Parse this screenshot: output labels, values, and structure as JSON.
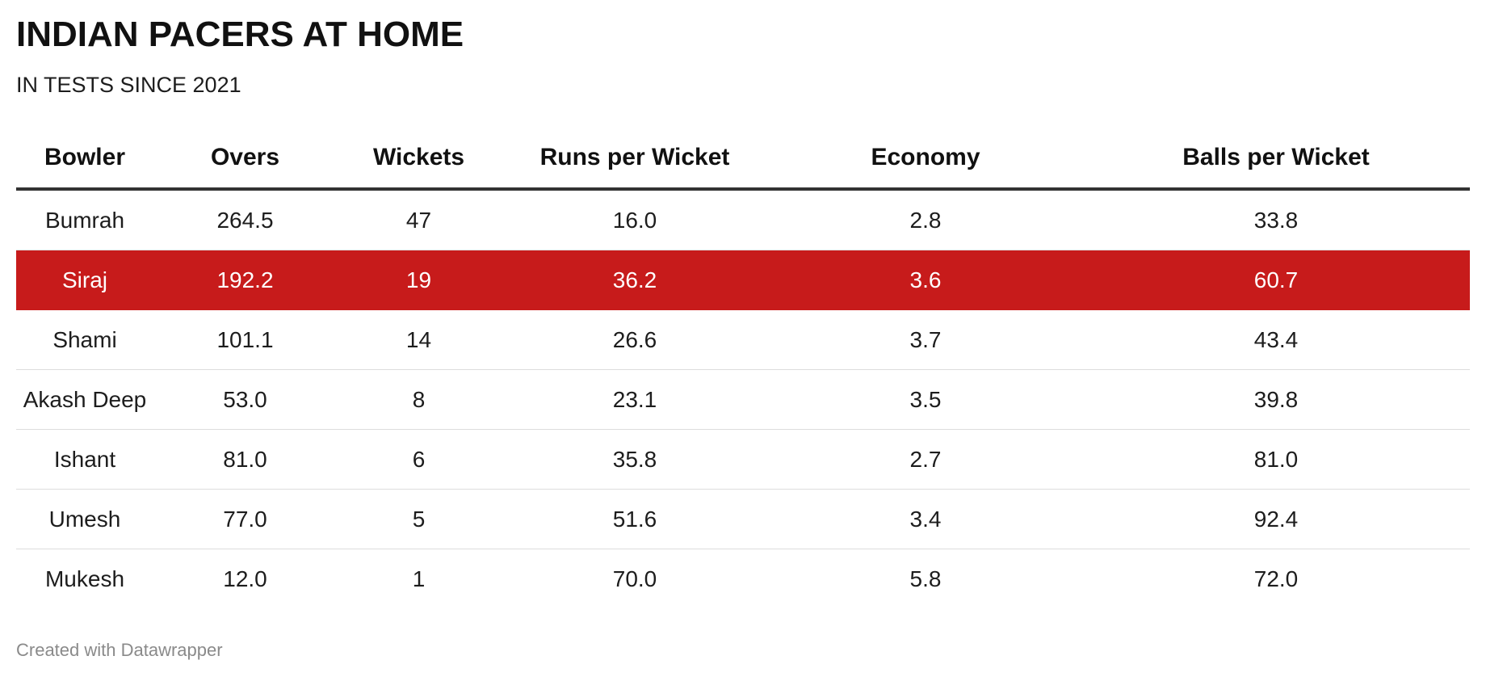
{
  "title": "INDIAN PACERS AT HOME",
  "subtitle": "IN TESTS SINCE 2021",
  "footer": "Created with Datawrapper",
  "colors": {
    "highlight_bg": "#c71b1b",
    "highlight_text": "#ffffff",
    "header_rule": "#333333",
    "row_rule": "#dddddd",
    "footer_text": "#8a8a8a"
  },
  "chart_data": {
    "type": "table",
    "title": "INDIAN PACERS AT HOME",
    "subtitle": "IN TESTS SINCE 2021",
    "columns": [
      "Bowler",
      "Overs",
      "Wickets",
      "Runs per Wicket",
      "Economy",
      "Balls per Wicket"
    ],
    "highlighted_row": "Siraj",
    "rows": [
      [
        "Bumrah",
        "264.5",
        "47",
        "16.0",
        "2.8",
        "33.8"
      ],
      [
        "Siraj",
        "192.2",
        "19",
        "36.2",
        "3.6",
        "60.7"
      ],
      [
        "Shami",
        "101.1",
        "14",
        "26.6",
        "3.7",
        "43.4"
      ],
      [
        "Akash Deep",
        "53.0",
        "8",
        "23.1",
        "3.5",
        "39.8"
      ],
      [
        "Ishant",
        "81.0",
        "6",
        "35.8",
        "2.7",
        "81.0"
      ],
      [
        "Umesh",
        "77.0",
        "5",
        "51.6",
        "3.4",
        "92.4"
      ],
      [
        "Mukesh",
        "12.0",
        "1",
        "70.0",
        "5.8",
        "72.0"
      ]
    ]
  }
}
